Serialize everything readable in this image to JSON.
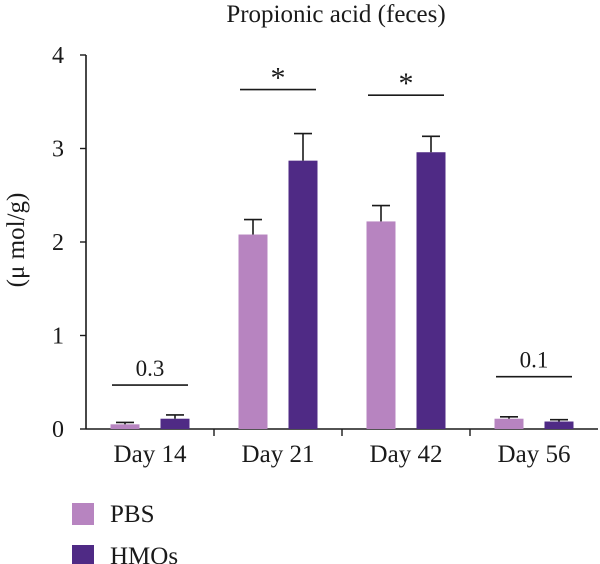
{
  "chart_data": {
    "type": "bar",
    "title": "Propionic acid (feces)",
    "xlabel": "",
    "ylabel": "(μ mol/g)",
    "ylim": [
      0,
      4
    ],
    "yticks": [
      "0",
      "1",
      "2",
      "3",
      "4"
    ],
    "categories": [
      "Day 14",
      "Day 21",
      "Day 42",
      "Day 56"
    ],
    "series": [
      {
        "name": "PBS",
        "color": "#b784c0",
        "values": [
          0.05,
          2.08,
          2.22,
          0.11
        ],
        "errors": [
          0.02,
          0.16,
          0.17,
          0.02
        ]
      },
      {
        "name": "HMOs",
        "color": "#4f2a85",
        "values": [
          0.11,
          2.87,
          2.96,
          0.08
        ],
        "errors": [
          0.04,
          0.29,
          0.17,
          0.02
        ]
      }
    ],
    "annotations": [
      {
        "category": "Day 14",
        "text": "0.3",
        "bracket_value": 0.47
      },
      {
        "category": "Day 21",
        "text": "*",
        "bracket_value": 3.63
      },
      {
        "category": "Day 42",
        "text": "*",
        "bracket_value": 3.57
      },
      {
        "category": "Day 56",
        "text": "0.1",
        "bracket_value": 0.56
      }
    ],
    "legend": {
      "placement": "bottom-left",
      "entries": [
        "PBS",
        "HMOs"
      ]
    },
    "grid": false
  }
}
